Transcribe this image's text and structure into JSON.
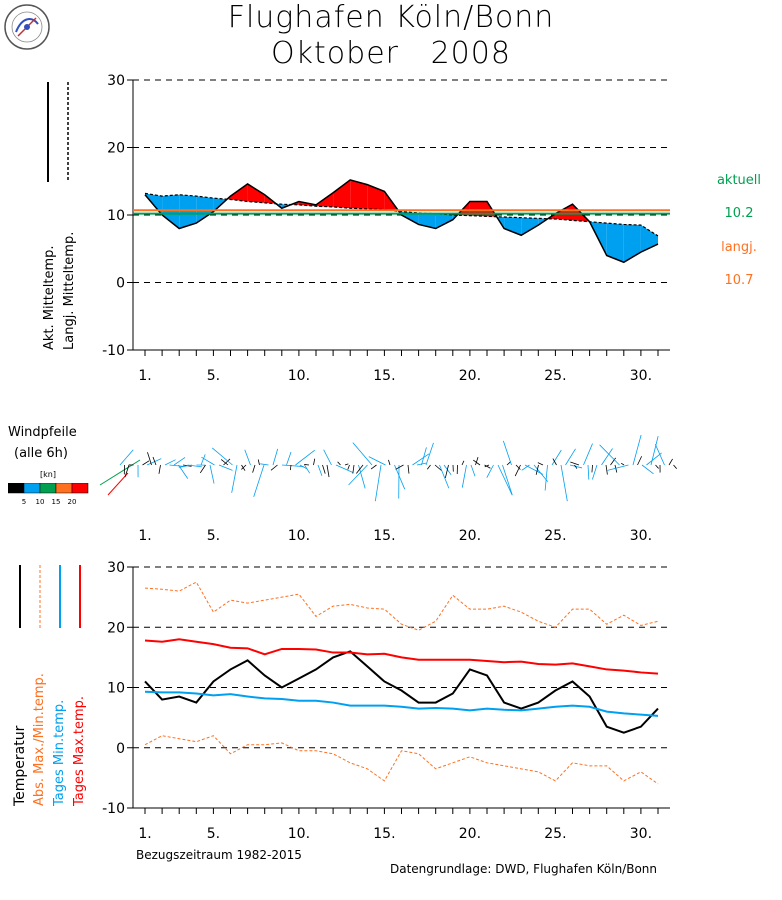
{
  "header": {
    "line1": "Flughafen Köln/Bonn",
    "line2": "Oktober   2008"
  },
  "panel1": {
    "ylabel_actual": "Akt. Mitteltemp.",
    "ylabel_longterm": "Langj. Mitteltemp.",
    "right": {
      "aktuell_label": "aktuell",
      "aktuell_value": "10.2",
      "langj_label": "langj.",
      "langj_value": "10.7"
    }
  },
  "wind": {
    "title1": "Windpfeile",
    "title2": "(alle 6h)",
    "unit": "[kn]",
    "scale_labels": [
      "5",
      "10",
      "15",
      "20"
    ]
  },
  "panel3": {
    "ylabel_temp": "Temperatur",
    "ylabel_absminmax": "Abs. Max./Min.temp.",
    "ylabel_mintemp": "Tages Min.temp.",
    "ylabel_maxtemp": "Tages Max.temp.",
    "reference_period": "Bezugszeitraum 1982-2015",
    "source": "Datengrundlage: DWD, Flughafen Köln/Bonn"
  },
  "chart_data": [
    {
      "type": "area",
      "yticks": [
        "30",
        "20",
        "10",
        "0",
        "-10"
      ],
      "xticks": [
        "1.",
        "5.",
        "10.",
        "15.",
        "20.",
        "25.",
        "30."
      ],
      "ylim": [
        -10,
        30
      ],
      "xlim": [
        0.5,
        31.5
      ],
      "grid": "dashed horizontal",
      "colors": {
        "above": "#ff0000",
        "below": "#00a0f0",
        "aktuell_line": "#00a050",
        "langj_line": "#ff7020"
      },
      "x": [
        1,
        2,
        3,
        4,
        5,
        6,
        7,
        8,
        9,
        10,
        11,
        12,
        13,
        14,
        15,
        16,
        17,
        18,
        19,
        20,
        21,
        22,
        23,
        24,
        25,
        26,
        27,
        28,
        29,
        30,
        31
      ],
      "series": [
        {
          "values": [
            13.0,
            10.0,
            8.0,
            8.8,
            10.5,
            12.8,
            14.6,
            13.0,
            11.0,
            12.0,
            11.5,
            13.3,
            15.2,
            14.5,
            13.5,
            10.0,
            8.6,
            8.0,
            9.3,
            12.0,
            12.0,
            8.0,
            7.0,
            8.5,
            10.2,
            11.6,
            9.0,
            4.0,
            3.0,
            4.5,
            5.7
          ]
        },
        {
          "values": [
            13.2,
            12.8,
            13.0,
            12.8,
            12.5,
            12.3,
            12.0,
            11.8,
            11.6,
            11.5,
            11.3,
            11.2,
            11.0,
            10.9,
            10.8,
            10.5,
            10.3,
            10.2,
            10.0,
            9.9,
            9.8,
            9.7,
            9.6,
            9.5,
            9.4,
            9.2,
            9.0,
            8.8,
            8.6,
            8.5,
            6.9
          ]
        }
      ],
      "reference_values": {
        "aktuell": 10.2,
        "langj": 10.7
      }
    },
    {
      "type": "line",
      "yticks": [
        "30",
        "20",
        "10",
        "0",
        "-10"
      ],
      "xticks": [
        "1.",
        "5.",
        "10.",
        "15.",
        "20.",
        "25.",
        "30."
      ],
      "ylim": [
        -10,
        30
      ],
      "xlim": [
        0.5,
        31.5
      ],
      "grid": "dashed horizontal",
      "x": [
        1,
        2,
        3,
        4,
        5,
        6,
        7,
        8,
        9,
        10,
        11,
        12,
        13,
        14,
        15,
        16,
        17,
        18,
        19,
        20,
        21,
        22,
        23,
        24,
        25,
        26,
        27,
        28,
        29,
        30,
        31
      ],
      "series": [
        {
          "color": "#000000",
          "width": 2,
          "values": [
            11.0,
            8.0,
            8.5,
            7.5,
            11.0,
            13.0,
            14.5,
            12.0,
            10.0,
            11.5,
            13.0,
            15.0,
            16.0,
            13.5,
            11.0,
            9.5,
            7.5,
            7.5,
            9.0,
            13.0,
            12.0,
            7.5,
            6.5,
            7.5,
            9.5,
            11.0,
            8.5,
            3.5,
            2.5,
            3.5,
            6.5
          ]
        },
        {
          "color": "#ff0000",
          "width": 2,
          "values": [
            17.8,
            17.6,
            18.0,
            17.6,
            17.2,
            16.6,
            16.5,
            15.5,
            16.4,
            16.4,
            16.3,
            15.8,
            15.8,
            15.5,
            15.6,
            15.0,
            14.6,
            14.6,
            14.6,
            14.6,
            14.4,
            14.2,
            14.3,
            13.9,
            13.8,
            14.0,
            13.5,
            13.0,
            12.8,
            12.5,
            12.3
          ]
        },
        {
          "color": "#00a0f0",
          "width": 2,
          "values": [
            9.3,
            9.2,
            9.2,
            9.0,
            8.7,
            8.9,
            8.5,
            8.2,
            8.1,
            7.8,
            7.8,
            7.5,
            7.0,
            7.0,
            7.0,
            6.8,
            6.5,
            6.6,
            6.5,
            6.2,
            6.5,
            6.3,
            6.2,
            6.5,
            6.8,
            7.0,
            6.8,
            6.0,
            5.7,
            5.5,
            5.3
          ]
        },
        {
          "color": "#ff7020",
          "width": 1,
          "dash": "3,2",
          "values": [
            26.5,
            26.3,
            26.0,
            27.5,
            22.5,
            24.5,
            24.0,
            24.5,
            25.0,
            25.5,
            21.8,
            23.5,
            23.8,
            23.2,
            23.0,
            20.5,
            19.5,
            21.0,
            25.3,
            23.0,
            23.0,
            23.5,
            22.5,
            21.0,
            20.0,
            23.0,
            23.0,
            20.5,
            22.0,
            20.3,
            21.0
          ]
        },
        {
          "color": "#ff7020",
          "width": 1,
          "dash": "3,2",
          "values": [
            0.5,
            2.0,
            1.5,
            1.0,
            2.0,
            -1.0,
            0.5,
            0.5,
            0.8,
            -0.5,
            -0.5,
            -1.0,
            -2.5,
            -3.5,
            -5.5,
            -0.5,
            -1.0,
            -3.5,
            -2.5,
            -1.5,
            -2.5,
            -3.0,
            -3.5,
            -4.0,
            -5.5,
            -2.5,
            -3.0,
            -3.0,
            -5.5,
            -4.0,
            -6.0
          ]
        }
      ]
    }
  ]
}
